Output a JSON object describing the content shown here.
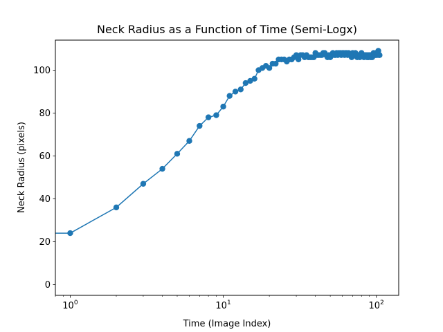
{
  "chart_data": {
    "type": "line",
    "title": "Neck Radius as a Function of Time (Semi-Logx)",
    "xlabel": "Time (Image Index)",
    "ylabel": "Neck Radius (pixels)",
    "x_scale": "log",
    "xlim": [
      0.8,
      140
    ],
    "ylim": [
      -5,
      114
    ],
    "x_ticks": [
      {
        "value": 1,
        "base": "10",
        "exp": "0"
      },
      {
        "value": 10,
        "base": "10",
        "exp": "1"
      },
      {
        "value": 100,
        "base": "10",
        "exp": "2"
      }
    ],
    "y_ticks": [
      0,
      20,
      40,
      60,
      80,
      100
    ],
    "grid": false,
    "legend": "none",
    "color": "#1f77b4",
    "series": [
      {
        "x": [
          0,
          1,
          2,
          3,
          4,
          5,
          6,
          7,
          8,
          9,
          10,
          11,
          12,
          13,
          14,
          15,
          16,
          17,
          18,
          19,
          20,
          21,
          22,
          23,
          24,
          25,
          26,
          27,
          28,
          29,
          30,
          31,
          32,
          33,
          34,
          35,
          36,
          37,
          38,
          39,
          40,
          41,
          42,
          43,
          44,
          45,
          46,
          47,
          48,
          49,
          50,
          51,
          52,
          53,
          54,
          55,
          56,
          57,
          58,
          59,
          60,
          61,
          62,
          63,
          64,
          65,
          66,
          67,
          68,
          69,
          70,
          71,
          72,
          73,
          74,
          75,
          76,
          77,
          78,
          79,
          80,
          81,
          82,
          83,
          84,
          85,
          86,
          87,
          88,
          89,
          90,
          91,
          92,
          93,
          94,
          95,
          96,
          97,
          98,
          99,
          100,
          101,
          102,
          103,
          104,
          105
        ],
        "y": [
          24,
          24,
          36,
          47,
          54,
          61,
          67,
          74,
          78,
          79,
          83,
          88,
          90,
          91,
          94,
          95,
          96,
          100,
          101,
          102,
          101,
          103,
          103,
          105,
          105,
          105,
          104,
          105,
          105,
          106,
          107,
          105,
          107,
          107,
          106,
          107,
          106,
          106,
          106,
          106,
          108,
          107,
          107,
          107,
          107,
          108,
          108,
          107,
          106,
          107,
          106,
          107,
          108,
          107,
          107,
          108,
          107,
          108,
          108,
          107,
          108,
          108,
          107,
          108,
          108,
          107,
          108,
          107,
          107,
          106,
          108,
          107,
          107,
          108,
          107,
          106,
          107,
          107,
          106,
          107,
          108,
          107,
          107,
          106,
          107,
          107,
          107,
          106,
          107,
          106,
          107,
          107,
          106,
          107,
          106,
          107,
          108,
          107,
          107,
          107,
          108,
          107,
          108,
          109,
          107,
          107
        ]
      }
    ]
  }
}
